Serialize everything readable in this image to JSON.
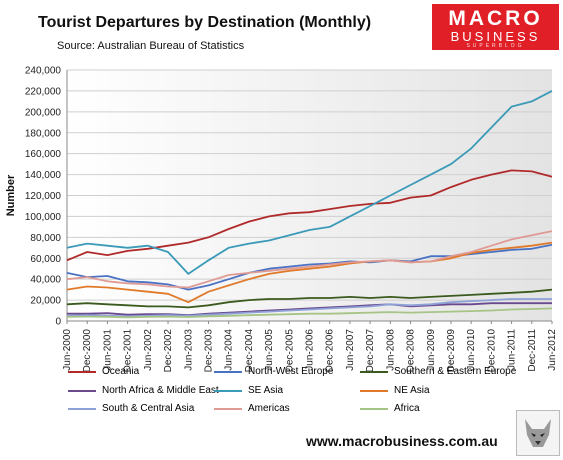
{
  "header": {
    "title": "Tourist Departures by Destination (Monthly)",
    "source": "Source: Australian Bureau of Statistics"
  },
  "logo": {
    "line1": "MACRO",
    "line2": "BUSINESS",
    "line3": "SUPERBLOG"
  },
  "footer": {
    "website": "www.macrobusiness.com.au"
  },
  "chart_data": {
    "type": "line",
    "title": "Tourist Departures by Destination (Monthly)",
    "ylabel": "Number",
    "ylim": [
      0,
      240000
    ],
    "yticks": [
      0,
      20000,
      40000,
      60000,
      80000,
      100000,
      120000,
      140000,
      160000,
      180000,
      200000,
      220000,
      240000
    ],
    "ytick_labels": [
      "0",
      "20,000",
      "40,000",
      "60,000",
      "80,000",
      "100,000",
      "120,000",
      "140,000",
      "160,000",
      "180,000",
      "200,000",
      "220,000",
      "240,000"
    ],
    "xtick_labels": [
      "Jun-2000",
      "Dec-2000",
      "Jun-2001",
      "Dec-2001",
      "Jun-2002",
      "Dec-2002",
      "Jun-2003",
      "Dec-2003",
      "Jun-2004",
      "Dec-2004",
      "Jun-2005",
      "Dec-2005",
      "Jun-2006",
      "Dec-2006",
      "Jun-2007",
      "Dec-2007",
      "Jun-2008",
      "Dec-2008",
      "Jun-2009",
      "Dec-2009",
      "Jun-2010",
      "Dec-2010",
      "Jun-2011",
      "Dec-2011",
      "Jun-2012"
    ],
    "grid": true,
    "legend_position": "bottom",
    "series": [
      {
        "name": "Oceania",
        "color": "#b02a2a",
        "values": [
          58000,
          66000,
          63000,
          67000,
          69000,
          72000,
          75000,
          80000,
          88000,
          95000,
          100000,
          103000,
          104000,
          107000,
          110000,
          112000,
          113000,
          118000,
          120000,
          128000,
          135000,
          140000,
          144000,
          143000,
          138000
        ]
      },
      {
        "name": "North-West Europe",
        "color": "#4a72c4",
        "values": [
          46000,
          42000,
          43000,
          38000,
          37000,
          35000,
          30000,
          34000,
          40000,
          46000,
          50000,
          52000,
          54000,
          55000,
          57000,
          56000,
          58000,
          57000,
          62000,
          62000,
          64000,
          66000,
          68000,
          69000,
          73000
        ]
      },
      {
        "name": "Southern & Eastern Europe",
        "color": "#3b5a1e",
        "values": [
          16000,
          17000,
          16000,
          15000,
          14000,
          14000,
          13000,
          15000,
          18000,
          20000,
          21000,
          21000,
          22000,
          22000,
          23000,
          22000,
          23000,
          22000,
          23000,
          24000,
          25000,
          26000,
          27000,
          28000,
          30000
        ]
      },
      {
        "name": "North Africa & Middle East",
        "color": "#6a4a8e",
        "values": [
          7000,
          7000,
          7500,
          6000,
          6500,
          6500,
          5500,
          7000,
          8000,
          9000,
          10000,
          11000,
          12000,
          13000,
          14000,
          15000,
          16000,
          14000,
          15000,
          16000,
          16000,
          17000,
          17000,
          17000,
          17000
        ]
      },
      {
        "name": "SE Asia",
        "color": "#3a9ab8",
        "values": [
          70000,
          74000,
          72000,
          70000,
          72000,
          66000,
          45000,
          58000,
          70000,
          74000,
          77000,
          82000,
          87000,
          90000,
          100000,
          110000,
          120000,
          130000,
          140000,
          150000,
          165000,
          185000,
          205000,
          210000,
          220000
        ]
      },
      {
        "name": "NE Asia",
        "color": "#e07a2a",
        "values": [
          30000,
          33000,
          32000,
          30000,
          28000,
          26000,
          18000,
          28000,
          34000,
          40000,
          45000,
          48000,
          50000,
          52000,
          55000,
          57000,
          58000,
          56000,
          57000,
          60000,
          65000,
          68000,
          70000,
          72000,
          75000
        ]
      },
      {
        "name": "South & Central Asia",
        "color": "#8ea2d8",
        "values": [
          5000,
          5500,
          5000,
          4500,
          5000,
          5500,
          5000,
          6000,
          7000,
          8000,
          9000,
          10000,
          11000,
          12000,
          13000,
          14000,
          16000,
          15000,
          16000,
          18000,
          19000,
          20000,
          21000,
          21000,
          21000
        ]
      },
      {
        "name": "Americas",
        "color": "#e09a94",
        "values": [
          40000,
          42000,
          38000,
          36000,
          35000,
          33000,
          32000,
          38000,
          44000,
          46000,
          48000,
          50000,
          52000,
          54000,
          56000,
          57000,
          58000,
          56000,
          57000,
          62000,
          66000,
          72000,
          78000,
          82000,
          86000
        ]
      },
      {
        "name": "Africa",
        "color": "#a6c486",
        "values": [
          4000,
          4200,
          4000,
          3500,
          4000,
          4200,
          3800,
          4500,
          5000,
          5500,
          6000,
          6500,
          7000,
          7000,
          7500,
          8000,
          8500,
          8000,
          8500,
          9000,
          9500,
          10000,
          11000,
          11500,
          12000
        ]
      }
    ]
  }
}
